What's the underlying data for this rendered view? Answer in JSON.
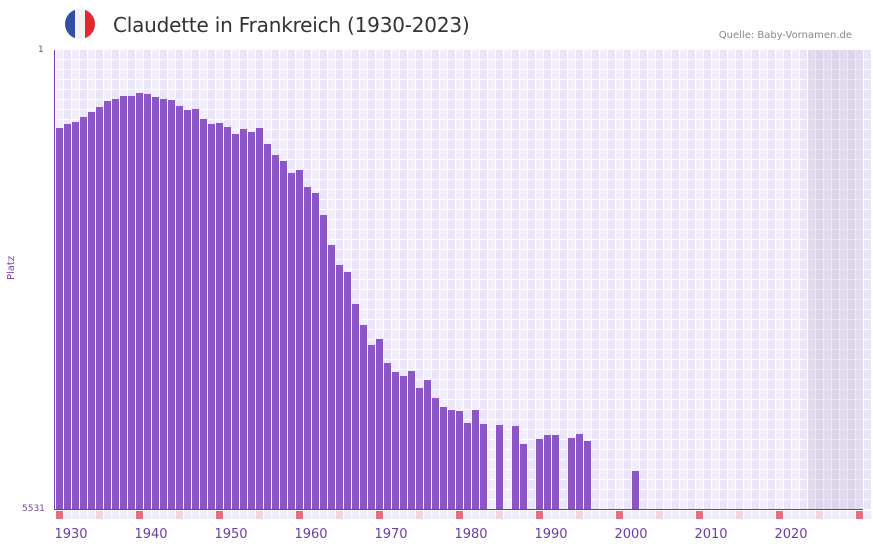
{
  "header": {
    "title": "Claudette in Frankreich (1930-2023)",
    "source": "Quelle: Baby-Vornamen.de",
    "flag_colors": [
      "#2f4fa2",
      "#f2f2f2",
      "#e5262e"
    ]
  },
  "colors": {
    "bar": "#8c55c8",
    "axis": "#7b3fb3",
    "grid_bg_a": "#f1edfa",
    "grid_bg_b": "#ebe6f7",
    "marker_decade": "#e0707a",
    "marker_half": "#f2d6df",
    "marker_default": "#f0edf8"
  },
  "chart_data": {
    "type": "bar",
    "title": "Claudette in Frankreich (1930-2023)",
    "xlabel": "",
    "ylabel": "Platz",
    "y_inverted": true,
    "ylim": [
      1,
      5531
    ],
    "y_ticks": [
      "1",
      "5531"
    ],
    "x_range": [
      1930,
      2030
    ],
    "x_ticks": [
      "1930",
      "1940",
      "1950",
      "1960",
      "1970",
      "1980",
      "1990",
      "2000",
      "2010",
      "2020"
    ],
    "shaded_from_year": 2024,
    "grid": true,
    "legend": null,
    "categories": [
      1930,
      1931,
      1932,
      1933,
      1934,
      1935,
      1936,
      1937,
      1938,
      1939,
      1940,
      1941,
      1942,
      1943,
      1944,
      1945,
      1946,
      1947,
      1948,
      1949,
      1950,
      1951,
      1952,
      1953,
      1954,
      1955,
      1956,
      1957,
      1958,
      1959,
      1960,
      1961,
      1962,
      1963,
      1964,
      1965,
      1966,
      1967,
      1968,
      1969,
      1970,
      1971,
      1972,
      1973,
      1974,
      1975,
      1976,
      1977,
      1978,
      1979,
      1980,
      1981,
      1982,
      1983,
      1984,
      1985,
      1986,
      1987,
      1988,
      1989,
      1990,
      1991,
      1992,
      1993,
      1994,
      1995,
      1996,
      1997,
      1998,
      1999,
      2000,
      2001,
      2002
    ],
    "values": [
      941,
      893,
      869,
      809,
      749,
      688,
      616,
      592,
      556,
      556,
      520,
      532,
      568,
      592,
      604,
      676,
      724,
      712,
      833,
      893,
      881,
      929,
      1013,
      953,
      989,
      941,
      1134,
      1266,
      1339,
      1483,
      1447,
      1652,
      1724,
      1989,
      2350,
      2591,
      2675,
      3061,
      3314,
      3555,
      3483,
      3772,
      3880,
      3928,
      3868,
      4073,
      3977,
      4194,
      4302,
      4338,
      4351,
      4495,
      4338,
      4507,
      null,
      4519,
      null,
      4531,
      4748,
      null,
      4688,
      4640,
      4640,
      null,
      4676,
      4628,
      4712,
      null,
      null,
      null,
      null,
      null,
      5073
    ]
  }
}
